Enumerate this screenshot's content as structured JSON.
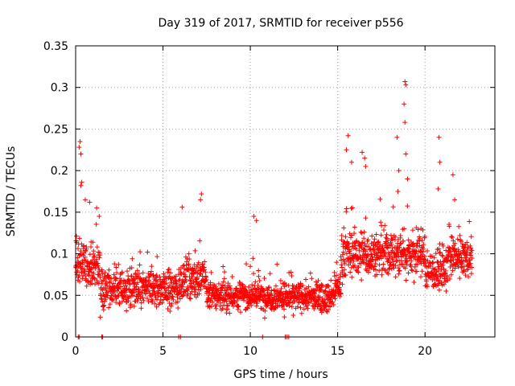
{
  "chart_data": {
    "type": "scatter",
    "title": "Day 319 of 2017, SRMTID for receiver p556",
    "xlabel": "GPS time / hours",
    "ylabel": "SRMTID / TECUs",
    "xlim": [
      0,
      24
    ],
    "ylim": [
      0,
      0.35
    ],
    "grid": true,
    "marker": "+",
    "color": "#ff0000",
    "xticks": [
      0,
      5,
      10,
      15,
      20
    ],
    "yticks": [
      0,
      0.05,
      0.1,
      0.15,
      0.2,
      0.25,
      0.3,
      0.35
    ],
    "xtick_labels": [
      "0",
      "5",
      "10",
      "15",
      "20"
    ],
    "ytick_labels": [
      "0",
      "0.05",
      "0.1",
      "0.15",
      "0.2",
      "0.25",
      "0.3",
      "0.35"
    ],
    "segments": [
      {
        "x0": 0.0,
        "x1": 1.4,
        "mean": 0.085,
        "spread": 0.03
      },
      {
        "x0": 1.4,
        "x1": 6.0,
        "mean": 0.058,
        "spread": 0.025
      },
      {
        "x0": 6.0,
        "x1": 7.5,
        "mean": 0.07,
        "spread": 0.025
      },
      {
        "x0": 7.5,
        "x1": 10.6,
        "mean": 0.05,
        "spread": 0.018
      },
      {
        "x0": 10.6,
        "x1": 14.8,
        "mean": 0.048,
        "spread": 0.018
      },
      {
        "x0": 14.8,
        "x1": 15.2,
        "mean": 0.06,
        "spread": 0.02
      },
      {
        "x0": 15.2,
        "x1": 20.0,
        "mean": 0.1,
        "spread": 0.03
      },
      {
        "x0": 20.0,
        "x1": 21.3,
        "mean": 0.08,
        "spread": 0.025
      },
      {
        "x0": 21.3,
        "x1": 22.7,
        "mean": 0.095,
        "spread": 0.025
      }
    ],
    "spikes": [
      {
        "x": 0.25,
        "y": 0.235
      },
      {
        "x": 0.2,
        "y": 0.228
      },
      {
        "x": 0.3,
        "y": 0.22
      },
      {
        "x": 0.35,
        "y": 0.186
      },
      {
        "x": 0.3,
        "y": 0.182
      },
      {
        "x": 0.55,
        "y": 0.165
      },
      {
        "x": 0.8,
        "y": 0.162
      },
      {
        "x": 1.2,
        "y": 0.155
      },
      {
        "x": 1.35,
        "y": 0.145
      },
      {
        "x": 6.1,
        "y": 0.156
      },
      {
        "x": 7.2,
        "y": 0.172
      },
      {
        "x": 7.15,
        "y": 0.165
      },
      {
        "x": 10.2,
        "y": 0.145
      },
      {
        "x": 10.35,
        "y": 0.14
      },
      {
        "x": 15.6,
        "y": 0.242
      },
      {
        "x": 15.5,
        "y": 0.225
      },
      {
        "x": 15.8,
        "y": 0.21
      },
      {
        "x": 16.4,
        "y": 0.222
      },
      {
        "x": 16.55,
        "y": 0.215
      },
      {
        "x": 16.6,
        "y": 0.205
      },
      {
        "x": 18.4,
        "y": 0.24
      },
      {
        "x": 18.5,
        "y": 0.2
      },
      {
        "x": 18.45,
        "y": 0.175
      },
      {
        "x": 18.85,
        "y": 0.307
      },
      {
        "x": 18.9,
        "y": 0.303
      },
      {
        "x": 18.8,
        "y": 0.28
      },
      {
        "x": 18.85,
        "y": 0.258
      },
      {
        "x": 18.9,
        "y": 0.22
      },
      {
        "x": 19.0,
        "y": 0.19
      },
      {
        "x": 20.8,
        "y": 0.24
      },
      {
        "x": 20.85,
        "y": 0.21
      },
      {
        "x": 20.75,
        "y": 0.178
      },
      {
        "x": 21.6,
        "y": 0.195
      },
      {
        "x": 21.7,
        "y": 0.165
      }
    ],
    "zeros": [
      0.15,
      0.2,
      1.5,
      1.55,
      5.9,
      6.0,
      10.7,
      12.0,
      12.1,
      12.2
    ]
  }
}
